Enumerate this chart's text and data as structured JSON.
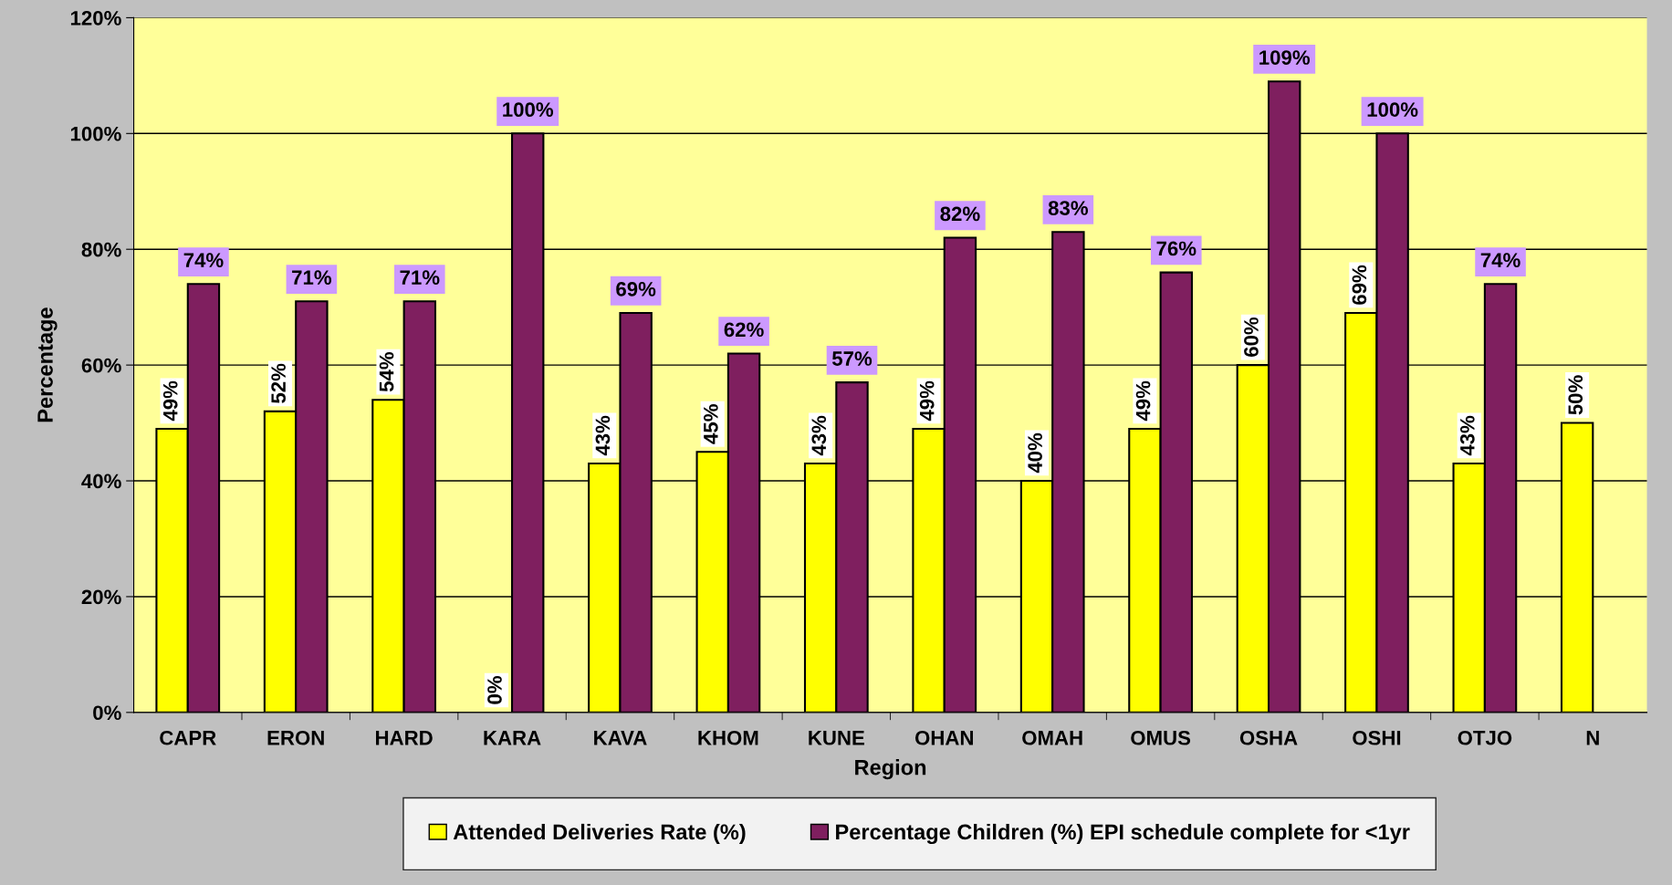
{
  "chart_data": {
    "type": "bar",
    "xlabel": "Region",
    "ylabel": "Percentage",
    "categories": [
      "CAPR",
      "ERON",
      "HARD",
      "KARA",
      "KAVA",
      "KHOM",
      "KUNE",
      "OHAN",
      "OMAH",
      "OMUS",
      "OSHA",
      "OSHI",
      "OTJO",
      "N"
    ],
    "series": [
      {
        "name": "Attended Deliveries Rate (%)",
        "color": "#ffff00",
        "values": [
          49,
          52,
          54,
          0,
          43,
          45,
          43,
          49,
          40,
          49,
          60,
          69,
          43,
          50
        ],
        "value_labels": [
          "49%",
          "52%",
          "54%",
          "0%",
          "43%",
          "45%",
          "43%",
          "49%",
          "40%",
          "49%",
          "60%",
          "69%",
          "43%",
          "50%"
        ]
      },
      {
        "name": "Percentage Children (%) EPI schedule complete for <1yr",
        "color": "#7f1f5f",
        "values": [
          74,
          71,
          71,
          100,
          69,
          62,
          57,
          82,
          83,
          76,
          109,
          100,
          74,
          null
        ],
        "value_labels": [
          "74%",
          "71%",
          "71%",
          "100%",
          "69%",
          "62%",
          "57%",
          "82%",
          "83%",
          "76%",
          "109%",
          "100%",
          "74%",
          null
        ]
      }
    ],
    "ylim": [
      0,
      120
    ],
    "yticks": [
      {
        "value": 0,
        "label": "0%"
      },
      {
        "value": 20,
        "label": "20%"
      },
      {
        "value": 40,
        "label": "40%"
      },
      {
        "value": 60,
        "label": "60%"
      },
      {
        "value": 80,
        "label": "80%"
      },
      {
        "value": 100,
        "label": "100%"
      },
      {
        "value": 120,
        "label": "120%"
      }
    ],
    "grid": "y",
    "legend": "bottom"
  }
}
